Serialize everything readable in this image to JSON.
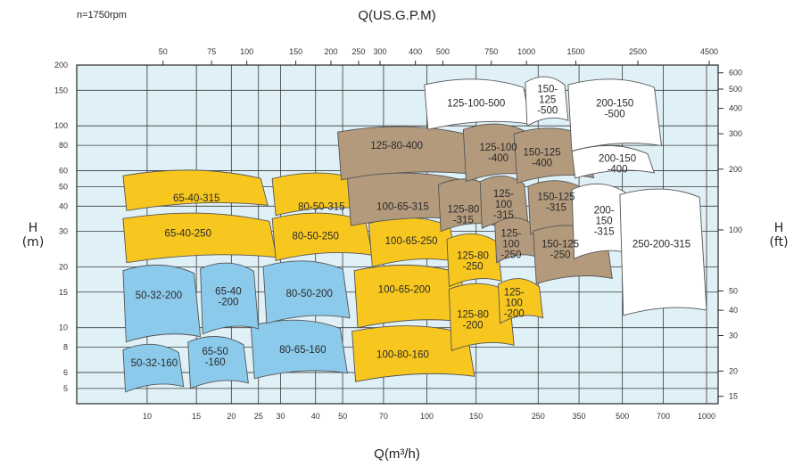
{
  "chart_data": {
    "type": "area",
    "title": "Q(US.G.P.M)",
    "subtitle": "n=1750rpm",
    "xlabel": "Q(m³/h)",
    "ylabel_left": "H\n(m)",
    "ylabel_right": "H\n(ft)",
    "x_scale": "log",
    "y_scale": "log",
    "xlim": [
      5.6,
      1100
    ],
    "ylim": [
      4.2,
      200
    ],
    "grid": true,
    "x_ticks_bottom": [
      10,
      15,
      20,
      25,
      30,
      40,
      50,
      70,
      100,
      150,
      250,
      350,
      500,
      700,
      1000
    ],
    "x_ticks_top": [
      {
        "label": "50",
        "q": 11.4
      },
      {
        "label": "75",
        "q": 17
      },
      {
        "label": "100",
        "q": 22.7
      },
      {
        "label": "150",
        "q": 34
      },
      {
        "label": "200",
        "q": 45.4
      },
      {
        "label": "250",
        "q": 57
      },
      {
        "label": "300",
        "q": 68
      },
      {
        "label": "400",
        "q": 91
      },
      {
        "label": "500",
        "q": 114
      },
      {
        "label": "750",
        "q": 170
      },
      {
        "label": "1000",
        "q": 227
      },
      {
        "label": "1500",
        "q": 341
      },
      {
        "label": "2500",
        "q": 568
      },
      {
        "label": "4500",
        "q": 1022
      }
    ],
    "y_ticks_left": [
      5,
      6,
      8,
      10,
      15,
      20,
      30,
      40,
      50,
      60,
      80,
      100,
      150,
      200
    ],
    "y_ticks_right": [
      {
        "label": "15",
        "h": 4.57
      },
      {
        "label": "20",
        "h": 6.1
      },
      {
        "label": "30",
        "h": 9.14
      },
      {
        "label": "40",
        "h": 12.2
      },
      {
        "label": "50",
        "h": 15.2
      },
      {
        "label": "100",
        "h": 30.5
      },
      {
        "label": "200",
        "h": 61
      },
      {
        "label": "300",
        "h": 91.4
      },
      {
        "label": "400",
        "h": 122
      },
      {
        "label": "500",
        "h": 152
      },
      {
        "label": "600",
        "h": 183
      }
    ],
    "colors": {
      "grid_bg": "#dff0f7",
      "grid_line": "#3a3a3a",
      "blue": "#8ccaec",
      "yellow": "#f7c71f",
      "brown": "#b39a7d",
      "white": "#ffffff",
      "outline": "#555555",
      "frame": "#2a2a2a"
    },
    "regions": [
      {
        "label": "50-32-160",
        "color": "blue",
        "q": [
          8.2,
          13.5
        ],
        "h": [
          4.8,
          8.5
        ],
        "label_at": [
          10.6,
          6.7
        ]
      },
      {
        "label": "65-50\n-160",
        "color": "blue",
        "q": [
          14,
          23
        ],
        "h": [
          5,
          9.3
        ],
        "label_at": [
          17.5,
          7.2
        ]
      },
      {
        "label": "80-65-160",
        "color": "blue",
        "q": [
          23.5,
          52
        ],
        "h": [
          5.6,
          11.2
        ],
        "label_at": [
          36,
          7.8
        ]
      },
      {
        "label": "50-32-200",
        "color": "blue",
        "q": [
          8.2,
          15.5
        ],
        "h": [
          8.5,
          21
        ],
        "label_at": [
          11,
          14.5
        ]
      },
      {
        "label": "65-40\n-200",
        "color": "blue",
        "q": [
          15.5,
          25
        ],
        "h": [
          9.3,
          21.5
        ],
        "label_at": [
          19.5,
          14.3
        ]
      },
      {
        "label": "80-50-200",
        "color": "blue",
        "q": [
          26,
          53
        ],
        "h": [
          10.5,
          22
        ],
        "label_at": [
          38,
          14.8
        ]
      },
      {
        "label": "65-40-250",
        "color": "yellow",
        "q": [
          8.2,
          29
        ],
        "h": [
          21,
          38
        ],
        "label_at": [
          14,
          29.5
        ]
      },
      {
        "label": "65-40-315",
        "color": "yellow",
        "q": [
          8.2,
          27
        ],
        "h": [
          38,
          62
        ],
        "label_at": [
          15,
          44
        ]
      },
      {
        "label": "80-50-250",
        "color": "yellow",
        "q": [
          28,
          64
        ],
        "h": [
          21.5,
          38
        ],
        "label_at": [
          40,
          28.5
        ]
      },
      {
        "label": "80-50-315",
        "color": "yellow",
        "q": [
          28,
          64
        ],
        "h": [
          36,
          60
        ],
        "label_at": [
          42,
          40
        ]
      },
      {
        "label": "100-65-250",
        "color": "yellow",
        "q": [
          62,
          128
        ],
        "h": [
          20,
          36
        ],
        "label_at": [
          88,
          27
        ]
      },
      {
        "label": "100-65-200",
        "color": "yellow",
        "q": [
          55,
          140
        ],
        "h": [
          10,
          21
        ],
        "label_at": [
          83,
          15.5
        ]
      },
      {
        "label": "100-80-160",
        "color": "yellow",
        "q": [
          54,
          148
        ],
        "h": [
          5.4,
          10.5
        ],
        "label_at": [
          82,
          7.4
        ]
      },
      {
        "label": "125-80\n-250",
        "color": "yellow",
        "q": [
          118,
          185
        ],
        "h": [
          16,
          30
        ],
        "label_at": [
          146,
          21.5
        ]
      },
      {
        "label": "125-80\n-200",
        "color": "yellow",
        "q": [
          120,
          205
        ],
        "h": [
          7.7,
          17
        ],
        "label_at": [
          146,
          11
        ]
      },
      {
        "label": "125-\n100\n-200",
        "color": "yellow",
        "q": [
          180,
          260
        ],
        "h": [
          10.5,
          18
        ],
        "label_at": [
          205,
          13.3
        ]
      },
      {
        "label": "125-80-400",
        "color": "brown",
        "q": [
          48,
          150
        ],
        "h": [
          54,
          102
        ],
        "label_at": [
          78,
          80
        ]
      },
      {
        "label": "100-65-315",
        "color": "brown",
        "q": [
          52,
          148
        ],
        "h": [
          32,
          60
        ],
        "label_at": [
          82,
          40
        ]
      },
      {
        "label": "125-80\n-315",
        "color": "brown",
        "q": [
          110,
          178
        ],
        "h": [
          30,
          56
        ],
        "label_at": [
          135,
          36.5
        ]
      },
      {
        "label": "125-\n100\n-315",
        "color": "brown",
        "q": [
          155,
          230
        ],
        "h": [
          31,
          58
        ],
        "label_at": [
          188,
          41
        ]
      },
      {
        "label": "125-\n100\n-250",
        "color": "brown",
        "q": [
          175,
          250
        ],
        "h": [
          21,
          36
        ],
        "label_at": [
          200,
          26
        ]
      },
      {
        "label": "125-100\n-400",
        "color": "brown",
        "q": [
          135,
          240
        ],
        "h": [
          53,
          105
        ],
        "label_at": [
          180,
          74
        ]
      },
      {
        "label": "150-125\n-400",
        "color": "brown",
        "q": [
          205,
          395
        ],
        "h": [
          52,
          100
        ],
        "label_at": [
          258,
          70
        ]
      },
      {
        "label": "150-125\n-315",
        "color": "brown",
        "q": [
          230,
          380
        ],
        "h": [
          29,
          55
        ],
        "label_at": [
          290,
          42
        ]
      },
      {
        "label": "150-125\n-250",
        "color": "brown",
        "q": [
          240,
          460
        ],
        "h": [
          16.5,
          33
        ],
        "label_at": [
          300,
          24.5
        ]
      },
      {
        "label": "125-100-500",
        "color": "white",
        "q": [
          98,
          235
        ],
        "h": [
          96,
          175
        ],
        "label_at": [
          150,
          130
        ]
      },
      {
        "label": "150-\n125\n-500",
        "color": "white",
        "q": [
          225,
          320
        ],
        "h": [
          100,
          180
        ],
        "label_at": [
          270,
          135
        ]
      },
      {
        "label": "200-150\n-500",
        "color": "white",
        "q": [
          320,
          690
        ],
        "h": [
          75,
          175
        ],
        "label_at": [
          470,
          122
        ]
      },
      {
        "label": "200-150\n-400",
        "color": "white",
        "q": [
          330,
          650
        ],
        "h": [
          55,
          82
        ],
        "label_at": [
          480,
          65
        ]
      },
      {
        "label": "200-\n150\n-315",
        "color": "white",
        "q": [
          330,
          530
        ],
        "h": [
          22,
          53
        ],
        "label_at": [
          430,
          34
        ]
      },
      {
        "label": "250-200-315",
        "color": "white",
        "q": [
          490,
          1000
        ],
        "h": [
          11.5,
          50
        ],
        "label_at": [
          690,
          26
        ]
      }
    ]
  }
}
